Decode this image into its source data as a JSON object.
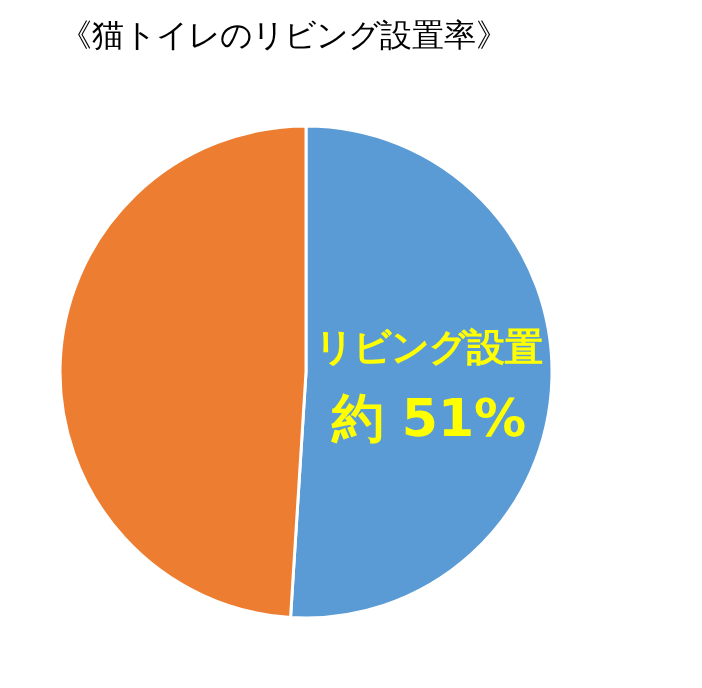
{
  "chart_data": {
    "type": "pie",
    "title": "《猫トイレのリビング設置率》",
    "categories": [
      "リビング設置",
      null
    ],
    "values": [
      51,
      49
    ],
    "colors": [
      "#5b9bd5",
      "#ed7d31"
    ],
    "value_labels": [
      "約 51%",
      null
    ]
  }
}
